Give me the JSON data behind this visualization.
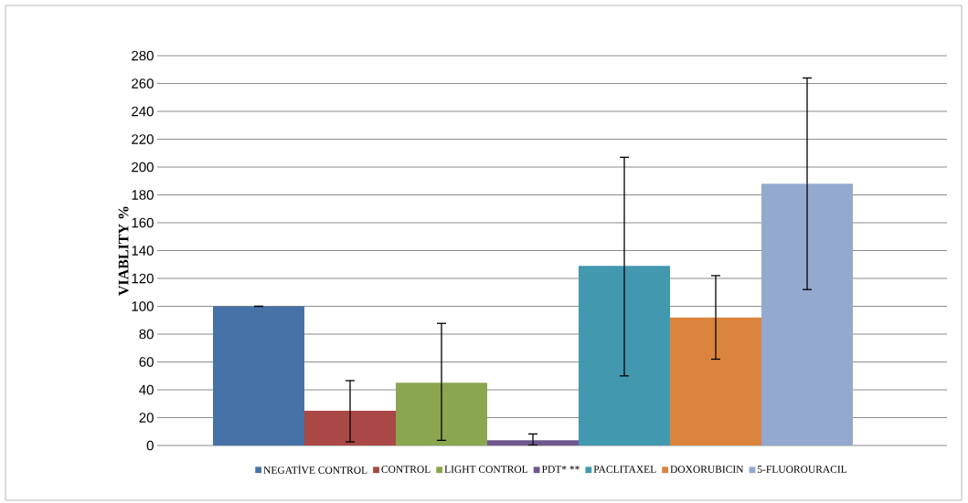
{
  "chart_data": {
    "type": "bar",
    "ylabel": "VIABLITY %",
    "categories": [
      null
    ],
    "series": [
      {
        "name": "NEGATİVE CONTROL",
        "color": "#4672a8",
        "values": [
          100
        ],
        "errors": [
          0
        ]
      },
      {
        "name": "CONTROL",
        "color": "#aa4846",
        "values": [
          25
        ],
        "errors": [
          [
            2.6,
            46.6
          ]
        ]
      },
      {
        "name": "LIGHT CONTROL",
        "color": "#8aa64e",
        "values": [
          45
        ],
        "errors": [
          [
            3.7,
            87.7
          ]
        ]
      },
      {
        "name": "PDT* **",
        "color": "#70588f",
        "values": [
          3.7
        ],
        "errors": [
          [
            0.2,
            8.3
          ]
        ]
      },
      {
        "name": "PACLITAXEL",
        "color": "#4198af",
        "values": [
          129
        ],
        "errors": [
          [
            50,
            207
          ]
        ]
      },
      {
        "name": "DOXORUBICIN",
        "color": "#db843d",
        "values": [
          92
        ],
        "errors": [
          [
            62,
            122
          ]
        ]
      },
      {
        "name": "5-FLUOROURACIL",
        "color": "#94a9ce",
        "values": [
          188
        ],
        "errors": [
          [
            112,
            264
          ]
        ]
      }
    ],
    "ylim": [
      0,
      280
    ],
    "yticks": [
      0,
      20,
      40,
      60,
      80,
      100,
      120,
      140,
      160,
      180,
      200,
      220,
      240,
      260,
      280
    ],
    "grid": "y",
    "legend": "bottom",
    "tick_labels": "y"
  }
}
